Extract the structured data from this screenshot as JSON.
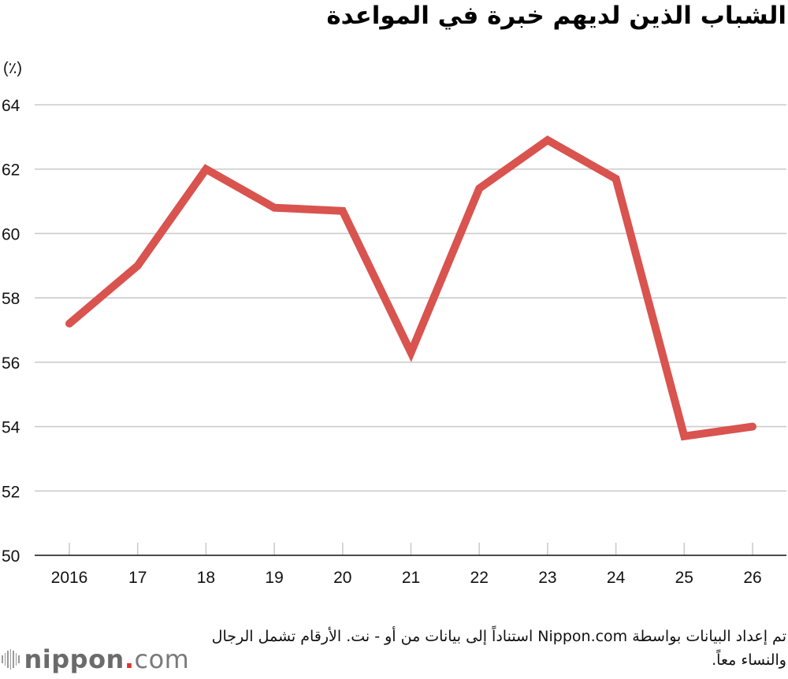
{
  "title": "الشباب الذين لديهم خبرة في المواعدة",
  "unit_label": "(٪)",
  "note": "تم إعداد البيانات بواسطة Nippon.com استناداً إلى بيانات من أو - نت. الأرقام تشمل الرجال والنساء معاً.",
  "logo": {
    "name": "nippon",
    "dot": ".",
    "suffix": "com"
  },
  "colors": {
    "line": "#d9534f",
    "grid": "#cccccc",
    "axis": "#111111",
    "logo_dot": "#e0312e"
  },
  "chart_data": {
    "type": "line",
    "title": "الشباب الذين لديهم خبرة في المواعدة",
    "xlabel": "",
    "ylabel": "(٪)",
    "categories": [
      "2016",
      "17",
      "18",
      "19",
      "20",
      "21",
      "22",
      "23",
      "24",
      "25",
      "26"
    ],
    "series": [
      {
        "name": "الشباب الذين لديهم خبرة في المواعدة",
        "values": [
          57.2,
          59.0,
          62.0,
          60.8,
          60.7,
          56.3,
          61.4,
          62.9,
          61.7,
          53.7,
          54.0
        ]
      }
    ],
    "yticks": [
      "50",
      "52",
      "54",
      "56",
      "58",
      "60",
      "62",
      "64"
    ],
    "ylim": [
      50,
      64
    ],
    "grid": true,
    "legend": "none"
  }
}
